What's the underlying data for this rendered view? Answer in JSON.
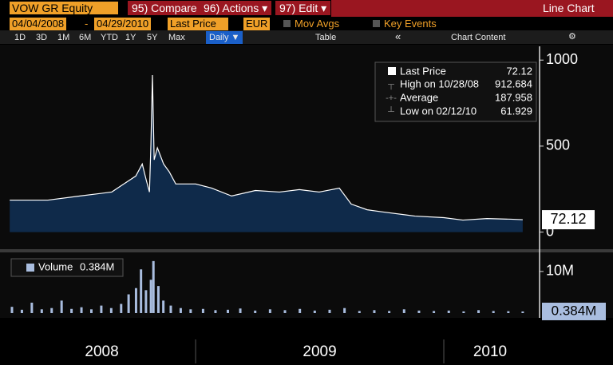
{
  "toolbar": {
    "ticker": "VOW GR Equity",
    "compare": "95) Compare",
    "actions": "96) Actions ▾",
    "edit": "97) Edit ▾",
    "view": "Line Chart"
  },
  "settings": {
    "start": "04/04/2008",
    "dash": "-",
    "end": "04/29/2010",
    "field": "Last Price",
    "currency": "EUR",
    "mov_avgs": "Mov Avgs",
    "key_events": "Key Events"
  },
  "ranges": [
    "1D",
    "3D",
    "1M",
    "6M",
    "YTD",
    "1Y",
    "5Y",
    "Max"
  ],
  "period": "Daily ▼",
  "table": "Table",
  "collapse": "«",
  "chart_content": "Chart Content",
  "chart_data": [
    {
      "type": "area",
      "series": [
        {
          "name": "Last Price",
          "color": "#ffffff",
          "x": [
            2008.251,
            2008.405,
            2008.534,
            2008.662,
            2008.711,
            2008.759,
            2008.785,
            2008.801,
            2008.814,
            2008.82,
            2008.826,
            2008.833,
            2008.846,
            2008.871,
            2008.894,
            2008.92,
            2009.0,
            2009.064,
            2009.145,
            2009.241,
            2009.338,
            2009.418,
            2009.498,
            2009.579,
            2009.627,
            2009.691,
            2009.756,
            2009.884,
            2010.0,
            2010.077,
            2010.174,
            2010.27,
            2010.318
          ],
          "values": [
            186,
            186,
            210,
            233,
            280,
            326,
            396,
            303,
            233,
            513,
            912.684,
            420,
            490,
            396,
            350,
            280,
            280,
            256,
            210,
            242,
            233,
            247,
            233,
            256,
            163,
            130,
            117,
            93,
            84,
            70,
            79,
            75,
            72.12
          ]
        }
      ],
      "xlim": [
        2008.244,
        2010.373
      ],
      "xticks": [
        2008,
        2009,
        2010
      ],
      "ylim": [
        -90,
        1080
      ],
      "yticks": [
        0,
        500,
        1000
      ],
      "last_value": 72.12,
      "stats": [
        {
          "label": "High on 10/28/08",
          "value": 912.684
        },
        {
          "label": "Average",
          "value": 187.958
        },
        {
          "label": "Low on 02/12/10",
          "value": 61.929
        }
      ]
    },
    {
      "type": "bar",
      "series": [
        {
          "name": "Volume",
          "color": "#a9bddf",
          "x": [
            2008.26,
            2008.3,
            2008.34,
            2008.38,
            2008.42,
            2008.46,
            2008.5,
            2008.54,
            2008.58,
            2008.62,
            2008.66,
            2008.7,
            2008.73,
            2008.76,
            2008.78,
            2008.8,
            2008.82,
            2008.83,
            2008.85,
            2008.87,
            2008.9,
            2008.94,
            2008.98,
            2009.03,
            2009.08,
            2009.13,
            2009.18,
            2009.24,
            2009.3,
            2009.36,
            2009.42,
            2009.48,
            2009.54,
            2009.6,
            2009.66,
            2009.72,
            2009.78,
            2009.84,
            2009.9,
            2009.96,
            2010.02,
            2010.08,
            2010.14,
            2010.2,
            2010.26,
            2010.318
          ],
          "values": [
            1500000,
            800000,
            2500000,
            900000,
            1200000,
            3000000,
            1000000,
            1400000,
            900000,
            1800000,
            1200000,
            2200000,
            4500000,
            6000000,
            10500000,
            5500000,
            8000000,
            12500000,
            6500000,
            3000000,
            1800000,
            1200000,
            900000,
            1000000,
            700000,
            800000,
            1100000,
            600000,
            900000,
            700000,
            1000000,
            600000,
            800000,
            1200000,
            500000,
            700000,
            500000,
            900000,
            600000,
            500000,
            600000,
            400000,
            700000,
            500000,
            450000,
            384000
          ]
        }
      ],
      "xlim": [
        2008.244,
        2010.373
      ],
      "ylim": [
        -580000,
        14200000
      ],
      "yticks": [
        {
          "value": 10000000,
          "label": "10M"
        }
      ],
      "last_value": {
        "value": 384000,
        "label": "0.384M"
      }
    }
  ]
}
